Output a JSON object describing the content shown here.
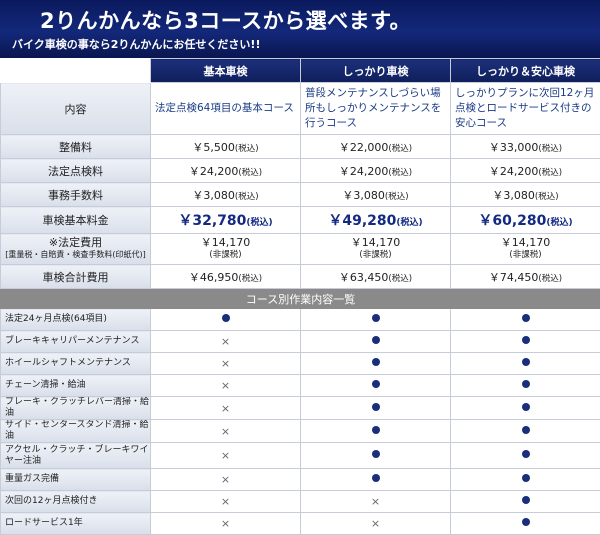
{
  "banner": {
    "title": "2りんかんなら3コースから選べます。",
    "subtitle": "バイク車検の事なら2りんかんにお任せください!!"
  },
  "courses": [
    "基本車検",
    "しっかり車検",
    "しっかり＆安心車検"
  ],
  "rows": {
    "content": {
      "label": "内容",
      "values": [
        "法定点検64項目の基本コース",
        "普段メンテナンスしづらい場所もしっかりメンテナンスを行うコース",
        "しっかりプランに次回12ヶ月点検とロードサービス付きの安心コース"
      ]
    },
    "maintenance": {
      "label": "整備料",
      "values": [
        "￥5,500",
        "￥22,000",
        "￥33,000"
      ],
      "tax": "(税込)"
    },
    "inspection": {
      "label": "法定点検料",
      "values": [
        "￥24,200",
        "￥24,200",
        "￥24,200"
      ],
      "tax": "(税込)"
    },
    "admin": {
      "label": "事務手数料",
      "values": [
        "￥3,080",
        "￥3,080",
        "￥3,080"
      ],
      "tax": "(税込)"
    },
    "basic": {
      "label": "車検基本料金",
      "values": [
        "￥32,780",
        "￥49,280",
        "￥60,280"
      ],
      "tax": "(税込)"
    },
    "legal": {
      "label": "※法定費用",
      "label_note": "[重量税・自賠責・検査手数料(印紙代)]",
      "values": [
        "￥14,170",
        "￥14,170",
        "￥14,170"
      ],
      "note": "(非課税)"
    },
    "total": {
      "label": "車検合計費用",
      "values": [
        "￥46,950",
        "￥63,450",
        "￥74,450"
      ],
      "tax": "(税込)"
    }
  },
  "section_title": "コース別作業内容一覧",
  "work_items": [
    {
      "label": "法定24ヶ月点検(64項目)",
      "marks": [
        "dot",
        "dot",
        "dot"
      ]
    },
    {
      "label": "ブレーキキャリパーメンテナンス",
      "marks": [
        "×",
        "dot",
        "dot"
      ]
    },
    {
      "label": "ホイールシャフトメンテナンス",
      "marks": [
        "×",
        "dot",
        "dot"
      ]
    },
    {
      "label": "チェーン清掃・給油",
      "marks": [
        "×",
        "dot",
        "dot"
      ]
    },
    {
      "label": "ブレーキ・クラッチレバー清掃・給油",
      "marks": [
        "×",
        "dot",
        "dot"
      ]
    },
    {
      "label": "サイド・センタースタンド清掃・給油",
      "marks": [
        "×",
        "dot",
        "dot"
      ]
    },
    {
      "label": "アクセル・クラッチ・ブレーキワイヤー注油",
      "marks": [
        "×",
        "dot",
        "dot"
      ]
    },
    {
      "label": "重量ガス完備",
      "marks": [
        "×",
        "dot",
        "dot"
      ]
    },
    {
      "label": "次回の12ヶ月点検付き",
      "marks": [
        "×",
        "×",
        "dot"
      ]
    },
    {
      "label": "ロードサービス1年",
      "marks": [
        "×",
        "×",
        "dot"
      ]
    }
  ]
}
